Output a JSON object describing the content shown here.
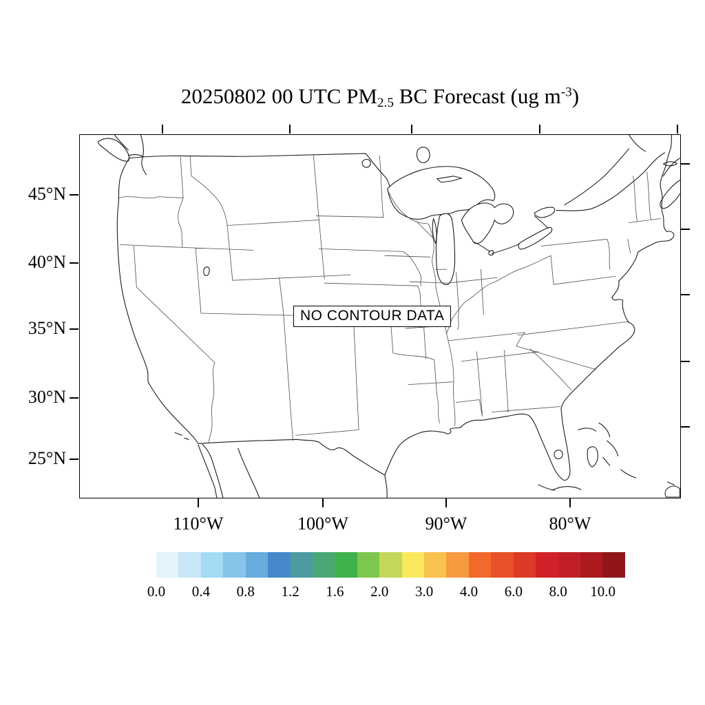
{
  "title": {
    "part1": "20250802 00 UTC PM",
    "subscript": "2.5",
    "part2": " BC Forecast (ug m",
    "superscript": "-3",
    "part3": ")"
  },
  "map": {
    "no_data_label": "NO CONTOUR DATA"
  },
  "axes": {
    "lat_labels": [
      "45°N",
      "40°N",
      "35°N",
      "30°N",
      "25°N"
    ],
    "lon_labels": [
      "110°W",
      "100°W",
      "90°W",
      "80°W"
    ]
  },
  "colorbar": {
    "labels": [
      "0.0",
      "0.4",
      "0.8",
      "1.2",
      "1.6",
      "2.0",
      "3.0",
      "4.0",
      "6.0",
      "8.0",
      "10.0"
    ],
    "colors": [
      "#e3f3fb",
      "#c8e7f7",
      "#a3daf4",
      "#86c5e8",
      "#68abdd",
      "#4589cb",
      "#4b9aa2",
      "#4aa877",
      "#3fb14c",
      "#7ec74e",
      "#c3d85a",
      "#f9e95e",
      "#f8c24f",
      "#f79a40",
      "#f2692b",
      "#e85129",
      "#dd3927",
      "#d22128",
      "#c01f25",
      "#ac1a20",
      "#901519"
    ]
  },
  "chart_data": {
    "type": "heatmap",
    "subtype": "geographic-contour-forecast-map",
    "title": "20250802 00 UTC PM2.5 BC Forecast (ug m-3)",
    "region": "Continental United States with state boundaries",
    "status_annotation": "NO CONTOUR DATA",
    "series": [],
    "x_axis": {
      "label": "longitude",
      "tick_labels": [
        "110°W",
        "100°W",
        "90°W",
        "80°W"
      ]
    },
    "y_axis": {
      "label": "latitude",
      "tick_labels": [
        "45°N",
        "40°N",
        "35°N",
        "30°N",
        "25°N"
      ]
    },
    "legend_position": "bottom",
    "grid": false,
    "colorbar_boundary_values": [
      0.0,
      0.2,
      0.4,
      0.6,
      0.8,
      1.0,
      1.2,
      1.4,
      1.6,
      1.8,
      2.0,
      2.5,
      3.0,
      3.5,
      4.0,
      5.0,
      6.0,
      7.0,
      8.0,
      9.0,
      10.0
    ],
    "colorbar_labeled_values": [
      0.0,
      0.4,
      0.8,
      1.2,
      1.6,
      2.0,
      3.0,
      4.0,
      6.0,
      8.0,
      10.0
    ],
    "colorbar_units": "ug m-3"
  }
}
